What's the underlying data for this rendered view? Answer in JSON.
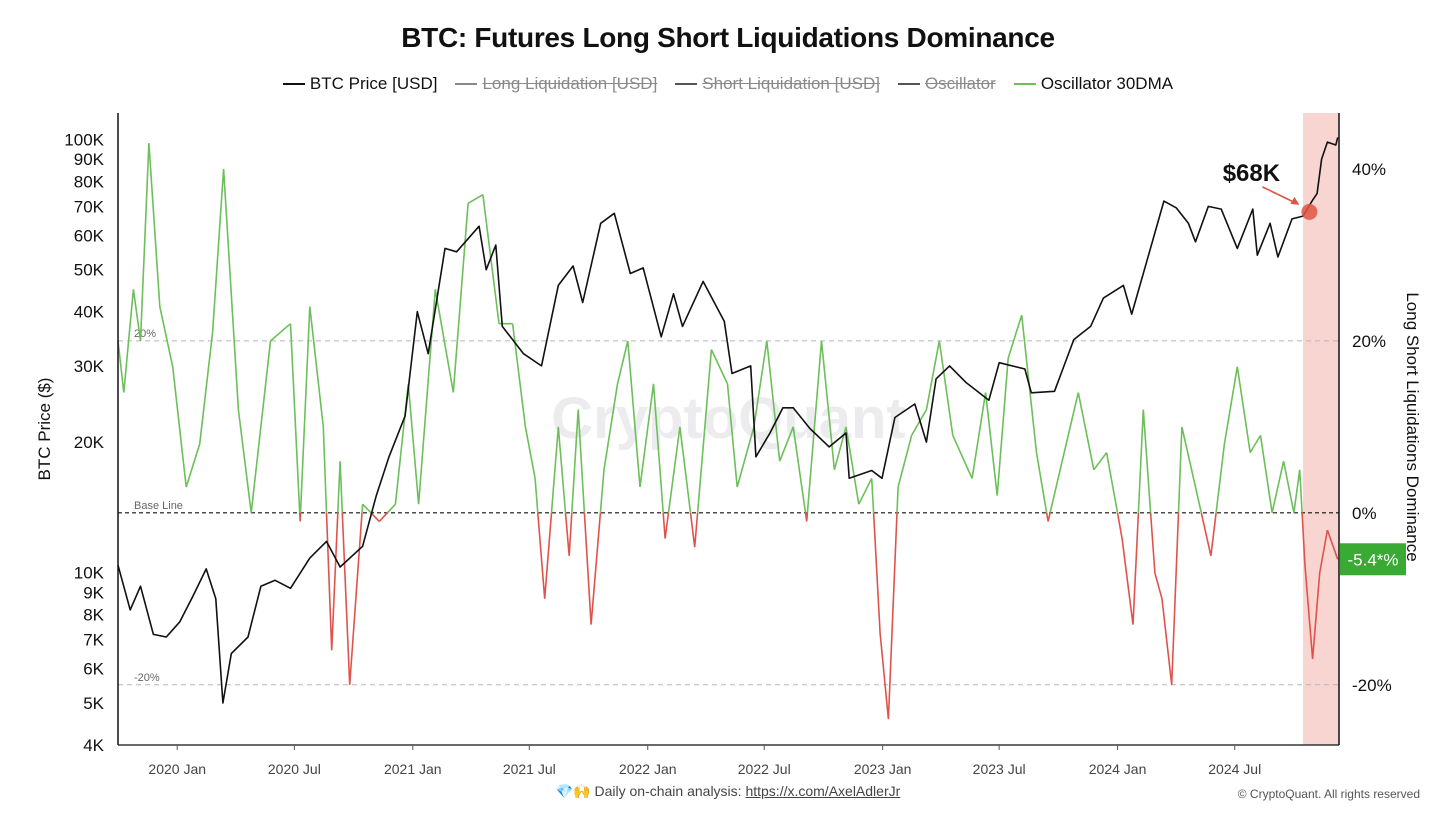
{
  "chart_data": {
    "type": "line",
    "title": "BTC: Futures Long Short Liquidations Dominance",
    "legend": [
      {
        "name": "BTC Price [USD]",
        "color": "#111111",
        "visible": true
      },
      {
        "name": "Long Liquidation [USD]",
        "color": "#888888",
        "visible": false
      },
      {
        "name": "Short Liquidation [USD]",
        "color": "#555555",
        "visible": false
      },
      {
        "name": "Oscillator",
        "color": "#555555",
        "visible": false
      },
      {
        "name": "Oscillator 30DMA",
        "color": "#6cbf5a",
        "visible": true
      }
    ],
    "y_left": {
      "label": "BTC Price ($)",
      "scale": "log",
      "range": [
        4000,
        115000
      ],
      "ticks": [
        {
          "v": 100000,
          "t": "100K"
        },
        {
          "v": 90000,
          "t": "90K"
        },
        {
          "v": 80000,
          "t": "80K"
        },
        {
          "v": 70000,
          "t": "70K"
        },
        {
          "v": 60000,
          "t": "60K"
        },
        {
          "v": 50000,
          "t": "50K"
        },
        {
          "v": 40000,
          "t": "40K"
        },
        {
          "v": 30000,
          "t": "30K"
        },
        {
          "v": 20000,
          "t": "20K"
        },
        {
          "v": 10000,
          "t": "10K"
        },
        {
          "v": 9000,
          "t": "9K"
        },
        {
          "v": 8000,
          "t": "8K"
        },
        {
          "v": 7000,
          "t": "7K"
        },
        {
          "v": 6000,
          "t": "6K"
        },
        {
          "v": 5000,
          "t": "5K"
        },
        {
          "v": 4000,
          "t": "4K"
        }
      ]
    },
    "y_right": {
      "label": "Long Short Liquidations Dominance",
      "range": [
        -0.27,
        0.465
      ],
      "ticks": [
        {
          "v": 0.4,
          "t": "40%"
        },
        {
          "v": 0.2,
          "t": "20%"
        },
        {
          "v": 0.0,
          "t": "0%"
        },
        {
          "v": -0.2,
          "t": "-20%"
        }
      ]
    },
    "x_range": [
      "2019-10-01",
      "2024-12-10"
    ],
    "x_ticks": [
      {
        "d": "2020-01-01",
        "t": "2020 Jan"
      },
      {
        "d": "2020-07-01",
        "t": "2020 Jul"
      },
      {
        "d": "2021-01-01",
        "t": "2021 Jan"
      },
      {
        "d": "2021-07-01",
        "t": "2021 Jul"
      },
      {
        "d": "2022-01-01",
        "t": "2022 Jan"
      },
      {
        "d": "2022-07-01",
        "t": "2022 Jul"
      },
      {
        "d": "2023-01-01",
        "t": "2023 Jan"
      },
      {
        "d": "2023-07-01",
        "t": "2023 Jul"
      },
      {
        "d": "2024-01-01",
        "t": "2024 Jan"
      },
      {
        "d": "2024-07-01",
        "t": "2024 Jul"
      }
    ],
    "reference_lines": [
      {
        "value": 0.2,
        "label": "20%"
      },
      {
        "value": 0.0,
        "label": "Base Line"
      },
      {
        "value": -0.2,
        "label": "-20%"
      }
    ],
    "highlight": {
      "x_start": "2024-10-15",
      "x_end": "2024-12-10",
      "color": "#f8d5d0"
    },
    "annotation": {
      "text": "$68K",
      "date": "2024-10-25",
      "value": 68000,
      "color": "#e05545"
    },
    "last_value_badge": {
      "text": "-5.4*%",
      "value": -0.054,
      "color": "#3aaa35"
    },
    "series": [
      {
        "name": "BTC Price [USD]",
        "axis": "left",
        "color": "#111111",
        "points": [
          [
            "2019-10-01",
            10400
          ],
          [
            "2019-10-20",
            8200
          ],
          [
            "2019-11-05",
            9300
          ],
          [
            "2019-11-25",
            7200
          ],
          [
            "2019-12-15",
            7100
          ],
          [
            "2020-01-05",
            7700
          ],
          [
            "2020-01-25",
            8800
          ],
          [
            "2020-02-15",
            10200
          ],
          [
            "2020-03-01",
            8700
          ],
          [
            "2020-03-12",
            5000
          ],
          [
            "2020-03-25",
            6500
          ],
          [
            "2020-04-20",
            7100
          ],
          [
            "2020-05-10",
            9300
          ],
          [
            "2020-06-01",
            9600
          ],
          [
            "2020-06-25",
            9200
          ],
          [
            "2020-07-25",
            10800
          ],
          [
            "2020-08-20",
            11800
          ],
          [
            "2020-09-10",
            10300
          ],
          [
            "2020-10-15",
            11500
          ],
          [
            "2020-11-05",
            15000
          ],
          [
            "2020-11-25",
            18500
          ],
          [
            "2020-12-20",
            23000
          ],
          [
            "2021-01-08",
            40000
          ],
          [
            "2021-01-25",
            32000
          ],
          [
            "2021-02-20",
            56000
          ],
          [
            "2021-03-10",
            55000
          ],
          [
            "2021-04-14",
            63000
          ],
          [
            "2021-04-25",
            50000
          ],
          [
            "2021-05-10",
            57000
          ],
          [
            "2021-05-20",
            37000
          ],
          [
            "2021-06-22",
            32000
          ],
          [
            "2021-07-20",
            30000
          ],
          [
            "2021-08-15",
            46000
          ],
          [
            "2021-09-07",
            51000
          ],
          [
            "2021-09-22",
            42000
          ],
          [
            "2021-10-20",
            64000
          ],
          [
            "2021-11-10",
            67500
          ],
          [
            "2021-12-05",
            49000
          ],
          [
            "2021-12-25",
            50500
          ],
          [
            "2022-01-22",
            35000
          ],
          [
            "2022-02-10",
            44000
          ],
          [
            "2022-02-24",
            37000
          ],
          [
            "2022-03-28",
            47000
          ],
          [
            "2022-04-30",
            38000
          ],
          [
            "2022-05-12",
            28800
          ],
          [
            "2022-06-10",
            30000
          ],
          [
            "2022-06-18",
            18500
          ],
          [
            "2022-07-10",
            21000
          ],
          [
            "2022-07-30",
            24000
          ],
          [
            "2022-08-15",
            24000
          ],
          [
            "2022-09-10",
            21500
          ],
          [
            "2022-10-10",
            19500
          ],
          [
            "2022-11-05",
            21000
          ],
          [
            "2022-11-10",
            16500
          ],
          [
            "2022-12-15",
            17200
          ],
          [
            "2022-12-31",
            16500
          ],
          [
            "2023-01-20",
            22800
          ],
          [
            "2023-02-20",
            24500
          ],
          [
            "2023-03-10",
            20000
          ],
          [
            "2023-03-25",
            28000
          ],
          [
            "2023-04-15",
            30000
          ],
          [
            "2023-05-10",
            27500
          ],
          [
            "2023-06-15",
            25000
          ],
          [
            "2023-07-01",
            30500
          ],
          [
            "2023-08-10",
            29500
          ],
          [
            "2023-08-20",
            26000
          ],
          [
            "2023-09-25",
            26200
          ],
          [
            "2023-10-25",
            34500
          ],
          [
            "2023-11-20",
            37000
          ],
          [
            "2023-12-10",
            43000
          ],
          [
            "2024-01-10",
            46000
          ],
          [
            "2024-01-23",
            39500
          ],
          [
            "2024-02-15",
            52000
          ],
          [
            "2024-03-13",
            72000
          ],
          [
            "2024-04-01",
            69500
          ],
          [
            "2024-04-20",
            64000
          ],
          [
            "2024-05-01",
            58000
          ],
          [
            "2024-05-21",
            70000
          ],
          [
            "2024-06-10",
            69000
          ],
          [
            "2024-07-05",
            56000
          ],
          [
            "2024-07-29",
            69000
          ],
          [
            "2024-08-05",
            54000
          ],
          [
            "2024-08-25",
            64000
          ],
          [
            "2024-09-06",
            53500
          ],
          [
            "2024-09-28",
            65500
          ],
          [
            "2024-10-15",
            66500
          ],
          [
            "2024-10-29",
            72000
          ],
          [
            "2024-11-06",
            75000
          ],
          [
            "2024-11-13",
            90000
          ],
          [
            "2024-11-22",
            98500
          ],
          [
            "2024-12-05",
            97000
          ],
          [
            "2024-12-08",
            101000
          ]
        ]
      },
      {
        "name": "Oscillator 30DMA",
        "axis": "right",
        "color_positive": "#6cbf5a",
        "color_negative": "#e0534d",
        "points": [
          [
            "2019-10-01",
            0.2
          ],
          [
            "2019-10-10",
            0.14
          ],
          [
            "2019-10-25",
            0.26
          ],
          [
            "2019-11-05",
            0.2
          ],
          [
            "2019-11-18",
            0.43
          ],
          [
            "2019-12-05",
            0.24
          ],
          [
            "2019-12-25",
            0.17
          ],
          [
            "2020-01-15",
            0.03
          ],
          [
            "2020-02-05",
            0.08
          ],
          [
            "2020-02-25",
            0.21
          ],
          [
            "2020-03-13",
            0.4
          ],
          [
            "2020-04-05",
            0.12
          ],
          [
            "2020-04-25",
            0.0
          ],
          [
            "2020-05-25",
            0.2
          ],
          [
            "2020-06-25",
            0.22
          ],
          [
            "2020-07-10",
            -0.01
          ],
          [
            "2020-07-25",
            0.24
          ],
          [
            "2020-08-15",
            0.1
          ],
          [
            "2020-08-28",
            -0.16
          ],
          [
            "2020-09-10",
            0.06
          ],
          [
            "2020-09-25",
            -0.2
          ],
          [
            "2020-10-15",
            0.01
          ],
          [
            "2020-11-10",
            -0.01
          ],
          [
            "2020-12-05",
            0.01
          ],
          [
            "2020-12-25",
            0.15
          ],
          [
            "2021-01-10",
            0.01
          ],
          [
            "2021-02-05",
            0.26
          ],
          [
            "2021-03-05",
            0.14
          ],
          [
            "2021-03-28",
            0.36
          ],
          [
            "2021-04-20",
            0.37
          ],
          [
            "2021-05-15",
            0.22
          ],
          [
            "2021-06-05",
            0.22
          ],
          [
            "2021-06-25",
            0.1
          ],
          [
            "2021-07-10",
            0.04
          ],
          [
            "2021-07-25",
            -0.1
          ],
          [
            "2021-08-15",
            0.1
          ],
          [
            "2021-09-01",
            -0.05
          ],
          [
            "2021-09-15",
            0.12
          ],
          [
            "2021-10-05",
            -0.13
          ],
          [
            "2021-10-25",
            0.05
          ],
          [
            "2021-11-15",
            0.15
          ],
          [
            "2021-12-01",
            0.2
          ],
          [
            "2021-12-20",
            0.03
          ],
          [
            "2022-01-10",
            0.15
          ],
          [
            "2022-01-28",
            -0.03
          ],
          [
            "2022-02-20",
            0.1
          ],
          [
            "2022-03-15",
            -0.04
          ],
          [
            "2022-04-10",
            0.19
          ],
          [
            "2022-05-05",
            0.15
          ],
          [
            "2022-05-20",
            0.03
          ],
          [
            "2022-06-15",
            0.1
          ],
          [
            "2022-07-05",
            0.2
          ],
          [
            "2022-07-25",
            0.06
          ],
          [
            "2022-08-15",
            0.1
          ],
          [
            "2022-09-05",
            -0.01
          ],
          [
            "2022-09-28",
            0.2
          ],
          [
            "2022-10-18",
            0.05
          ],
          [
            "2022-11-05",
            0.1
          ],
          [
            "2022-11-25",
            0.01
          ],
          [
            "2022-12-15",
            0.04
          ],
          [
            "2022-12-28",
            -0.14
          ],
          [
            "2023-01-10",
            -0.24
          ],
          [
            "2023-01-25",
            0.03
          ],
          [
            "2023-02-15",
            0.09
          ],
          [
            "2023-03-10",
            0.12
          ],
          [
            "2023-03-30",
            0.2
          ],
          [
            "2023-04-20",
            0.09
          ],
          [
            "2023-05-20",
            0.04
          ],
          [
            "2023-06-10",
            0.14
          ],
          [
            "2023-06-28",
            0.02
          ],
          [
            "2023-07-15",
            0.18
          ],
          [
            "2023-08-05",
            0.23
          ],
          [
            "2023-08-28",
            0.07
          ],
          [
            "2023-09-15",
            -0.01
          ],
          [
            "2023-10-10",
            0.07
          ],
          [
            "2023-11-01",
            0.14
          ],
          [
            "2023-11-25",
            0.05
          ],
          [
            "2023-12-15",
            0.07
          ],
          [
            "2024-01-08",
            -0.03
          ],
          [
            "2024-01-25",
            -0.13
          ],
          [
            "2024-02-10",
            0.12
          ],
          [
            "2024-02-28",
            -0.07
          ],
          [
            "2024-03-10",
            -0.1
          ],
          [
            "2024-03-25",
            -0.2
          ],
          [
            "2024-04-10",
            0.1
          ],
          [
            "2024-04-25",
            0.05
          ],
          [
            "2024-05-10",
            0.0
          ],
          [
            "2024-05-25",
            -0.05
          ],
          [
            "2024-06-15",
            0.08
          ],
          [
            "2024-07-05",
            0.17
          ],
          [
            "2024-07-25",
            0.07
          ],
          [
            "2024-08-10",
            0.09
          ],
          [
            "2024-08-28",
            0.0
          ],
          [
            "2024-09-15",
            0.06
          ],
          [
            "2024-10-01",
            0.0
          ],
          [
            "2024-10-10",
            0.05
          ],
          [
            "2024-10-18",
            -0.06
          ],
          [
            "2024-10-30",
            -0.17
          ],
          [
            "2024-11-10",
            -0.07
          ],
          [
            "2024-11-22",
            -0.02
          ],
          [
            "2024-12-08",
            -0.054
          ]
        ]
      }
    ]
  },
  "footer": {
    "emoji": "💎🙌",
    "text": "Daily on-chain analysis:",
    "link": "https://x.com/AxelAdlerJr"
  },
  "copyright": "© CryptoQuant. All rights reserved",
  "watermark": "CryptoQuant"
}
